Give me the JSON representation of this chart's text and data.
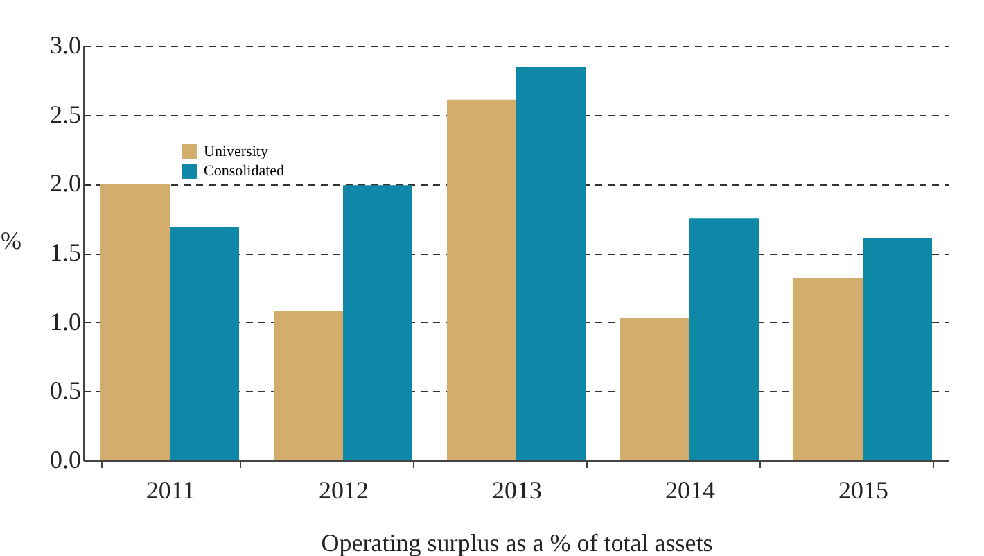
{
  "chart_data": {
    "type": "bar",
    "xlabel": "Operating surplus as a % of total assets",
    "ylabel": "%",
    "categories": [
      "2011",
      "2012",
      "2013",
      "2014",
      "2015"
    ],
    "series": [
      {
        "name": "University",
        "color": "#d2ad6b",
        "values": [
          2.0,
          1.08,
          2.61,
          1.03,
          1.32
        ]
      },
      {
        "name": "Consolidated",
        "color": "#0e88a6",
        "values": [
          1.69,
          1.99,
          2.85,
          1.75,
          1.61
        ]
      }
    ],
    "ylim": [
      0,
      3.0
    ],
    "yticks": [
      {
        "value": 0,
        "label": "0.0"
      },
      {
        "value": 0.5,
        "label": "0.5"
      },
      {
        "value": 1,
        "label": "1.0"
      },
      {
        "value": 1.5,
        "label": "1.5"
      },
      {
        "value": 2,
        "label": "2.0"
      },
      {
        "value": 2.5,
        "label": "2.5"
      },
      {
        "value": 3,
        "label": "3.0"
      }
    ],
    "grid": "y",
    "legend": "top left"
  }
}
